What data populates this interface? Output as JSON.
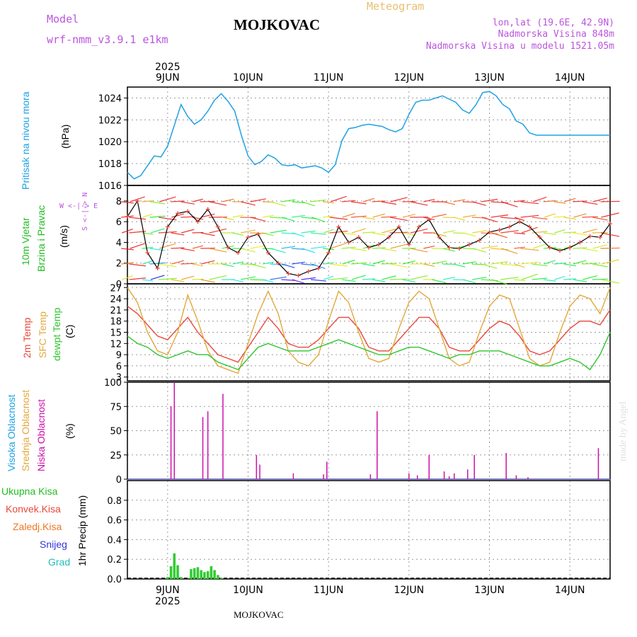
{
  "header": {
    "model_label": "Model",
    "model_name": "wrf-nmm_v3.9.1 e1km",
    "location": "MOJKOVAC",
    "meteogram_label": "Meteogram",
    "coords": "lon,lat (19.6E, 42.9N)",
    "altitude": "Nadmorska Visina 848m",
    "model_altitude": "Nadmorska Visina u modelu 1521.05m",
    "footer_location": "MOJKOVAC",
    "watermark": "made by Angel"
  },
  "colors": {
    "pressure": "#1fa2e3",
    "temp2m": "#e8473a",
    "sfc": "#e2a83c",
    "dew": "#2ec52e",
    "cloud": "#cc11aa",
    "precip": "#33cc33",
    "header": "#bb55dd",
    "meteogram": "#e8c070"
  },
  "time_axis": {
    "year": "2025",
    "day_labels": [
      "9JUN",
      "10JUN",
      "11JUN",
      "12JUN",
      "13JUN",
      "14JUN"
    ],
    "start_hour": 0,
    "end_hour": 144
  },
  "chart_data": [
    {
      "type": "line",
      "panel": "pressure",
      "title": "Pritisak na nivou mora",
      "ylabel": "(hPa)",
      "ylim": [
        1016,
        1025
      ],
      "yticks": [
        1016,
        1018,
        1020,
        1022,
        1024
      ],
      "grid": true,
      "x": [
        0,
        2,
        4,
        6,
        8,
        10,
        12,
        14,
        16,
        18,
        20,
        22,
        24,
        26,
        28,
        30,
        32,
        34,
        36,
        38,
        40,
        42,
        44,
        46,
        48,
        50,
        52,
        54,
        56,
        58,
        60,
        62,
        64,
        66,
        68,
        70,
        72,
        74,
        76,
        78,
        80,
        82,
        84,
        86,
        88,
        90,
        92,
        94,
        96,
        98,
        100,
        102,
        104,
        106,
        108,
        110,
        112,
        114,
        116,
        118,
        120,
        122,
        124,
        126,
        128,
        130,
        132,
        134,
        136,
        138,
        140,
        142,
        144
      ],
      "series": [
        {
          "name": "",
          "values": [
            1017.2,
            1016.6,
            1016.9,
            1017.8,
            1018.7,
            1018.6,
            1019.6,
            1021.5,
            1023.4,
            1022.3,
            1021.6,
            1022.0,
            1022.8,
            1023.8,
            1024.4,
            1023.7,
            1022.8,
            1020.6,
            1018.7,
            1017.9,
            1018.2,
            1018.8,
            1018.5,
            1017.9,
            1017.8,
            1017.9,
            1017.6,
            1017.7,
            1017.8,
            1017.6,
            1017.2,
            1017.9,
            1020.1,
            1021.2,
            1021.3,
            1021.5,
            1021.6,
            1021.5,
            1021.4,
            1021.1,
            1020.9,
            1021.2,
            1022.5,
            1023.6,
            1023.8,
            1023.8,
            1024.0,
            1024.2,
            1023.9,
            1023.6,
            1022.9,
            1022.6,
            1023.4,
            1024.5,
            1024.6,
            1024.2,
            1023.4,
            1023.0,
            1021.9,
            1021.6,
            1020.8,
            1020.6,
            1020.6,
            1020.6,
            1020.6,
            1020.6,
            1020.6,
            1020.6,
            1020.6,
            1020.6,
            1020.6,
            1020.6,
            1020.6
          ]
        }
      ]
    },
    {
      "type": "line",
      "panel": "wind",
      "title": "10m Vjetar Brzina i Pravac",
      "ylabel": "(m/s)",
      "compass": "W <-|-> E",
      "compass_ns": "S <-|-> N",
      "ylim": [
        0,
        9.5
      ],
      "yticks": [
        0,
        2,
        4,
        6,
        8
      ],
      "grid": true,
      "x": [
        0,
        3,
        6,
        9,
        12,
        15,
        18,
        21,
        24,
        27,
        30,
        33,
        36,
        39,
        42,
        45,
        48,
        51,
        54,
        57,
        60,
        63,
        66,
        69,
        72,
        75,
        78,
        81,
        84,
        87,
        90,
        93,
        96,
        99,
        102,
        105,
        108,
        111,
        114,
        117,
        120,
        123,
        126,
        129,
        132,
        135,
        138,
        141,
        144
      ],
      "series": [
        {
          "name": "",
          "values": [
            6.5,
            8.0,
            3.0,
            1.5,
            5.5,
            6.8,
            7.0,
            6.0,
            7.2,
            5.5,
            3.5,
            3.0,
            4.5,
            4.8,
            3.0,
            2.0,
            1.0,
            0.8,
            1.2,
            1.5,
            3.0,
            5.5,
            4.0,
            4.5,
            3.5,
            3.8,
            4.5,
            5.5,
            3.8,
            5.5,
            6.2,
            4.5,
            3.5,
            3.4,
            3.8,
            4.2,
            5.0,
            5.2,
            5.5,
            6.0,
            5.5,
            4.5,
            3.5,
            3.2,
            3.5,
            4.0,
            4.6,
            4.5,
            5.8
          ]
        }
      ]
    },
    {
      "type": "line",
      "panel": "temperature",
      "title": "2m Temp / SFC Temp / dewpt Temp",
      "labels": [
        "2m Temp",
        "SFC Temp",
        "dewpt Temp"
      ],
      "ylabel": "(C)",
      "ylim": [
        2,
        28
      ],
      "yticks": [
        3,
        6,
        9,
        12,
        15,
        18,
        21,
        24,
        27
      ],
      "grid": true,
      "x": [
        0,
        3,
        6,
        9,
        12,
        15,
        18,
        21,
        24,
        27,
        30,
        33,
        36,
        39,
        42,
        45,
        48,
        51,
        54,
        57,
        60,
        63,
        66,
        69,
        72,
        75,
        78,
        81,
        84,
        87,
        90,
        93,
        96,
        99,
        102,
        105,
        108,
        111,
        114,
        117,
        120,
        123,
        126,
        129,
        132,
        135,
        138,
        141,
        144
      ],
      "series": [
        {
          "name": "2m Temp",
          "values": [
            22,
            20,
            17,
            14,
            13,
            16,
            19,
            15,
            12,
            9,
            8,
            7,
            11,
            15,
            19,
            16,
            12,
            11,
            11,
            13,
            16,
            19,
            19,
            16,
            11,
            10,
            10,
            13,
            16,
            19,
            19,
            16,
            11,
            10,
            10,
            13,
            16,
            18,
            17,
            14,
            10,
            9,
            10,
            13,
            16,
            18,
            18,
            17,
            21
          ]
        },
        {
          "name": "SFC Temp",
          "values": [
            27,
            23,
            15,
            10,
            9,
            15,
            25,
            18,
            10,
            6,
            5,
            4,
            12,
            20,
            26,
            20,
            10,
            7,
            6,
            9,
            18,
            26,
            23,
            15,
            8,
            7,
            8,
            16,
            23,
            26,
            24,
            16,
            8,
            6,
            7,
            15,
            22,
            25,
            24,
            16,
            8,
            6,
            7,
            15,
            22,
            25,
            24,
            20,
            27
          ]
        },
        {
          "name": "dewpt Temp",
          "values": [
            14,
            12,
            11,
            9,
            8,
            9,
            10,
            9,
            9,
            7,
            6,
            5,
            8,
            11,
            12,
            11,
            10,
            10,
            10,
            11,
            12,
            13,
            12,
            11,
            10,
            9,
            9,
            10,
            11,
            11,
            10,
            9,
            8,
            9,
            9,
            10,
            10,
            10,
            9,
            8,
            7,
            6,
            6,
            7,
            8,
            7,
            5,
            9,
            15
          ]
        }
      ]
    },
    {
      "type": "bar",
      "panel": "clouds",
      "title": "Visoka / Srednja / Niska Oblacnost",
      "labels": [
        "Visoka Oblacnost",
        "Srednja Oblacnost",
        "Niska Oblacnost"
      ],
      "ylabel": "(%)",
      "ylim": [
        0,
        100
      ],
      "yticks": [
        0,
        25,
        50,
        75,
        100
      ],
      "grid": true,
      "x": [
        13.0,
        14.0,
        22.5,
        24.0,
        28.5,
        38.5,
        39.5,
        49.5,
        58.5,
        59.5,
        72.5,
        74.5,
        84.0,
        86.5,
        90.0,
        94.5,
        96.0,
        97.5,
        101.5,
        103.5,
        113.0,
        116.0,
        119.5,
        140.5
      ],
      "values": [
        75,
        100,
        64,
        70,
        88,
        25,
        15,
        6,
        5,
        18,
        5,
        70,
        6,
        4,
        25,
        8,
        3,
        6,
        10,
        25,
        27,
        4,
        2,
        32
      ]
    },
    {
      "type": "bar",
      "panel": "precip",
      "title": "1hr Precip",
      "labels": [
        "Ukupna Kisa",
        "Konvek.Kisa",
        "Zaledj.Kisa",
        "Snijeg",
        "Grad"
      ],
      "ylabel": "1hr Precip (mm)",
      "ylim": [
        0,
        1
      ],
      "yticks": [
        0.0,
        0.2,
        0.4,
        0.6,
        0.8
      ],
      "grid": true,
      "x": [
        12,
        13,
        14,
        15,
        16,
        19,
        20,
        21,
        22,
        23,
        24,
        25,
        26,
        27,
        28
      ],
      "values": [
        0.02,
        0.13,
        0.26,
        0.14,
        0.02,
        0.1,
        0.11,
        0.12,
        0.09,
        0.07,
        0.08,
        0.13,
        0.09,
        0.04,
        0.01
      ]
    }
  ]
}
